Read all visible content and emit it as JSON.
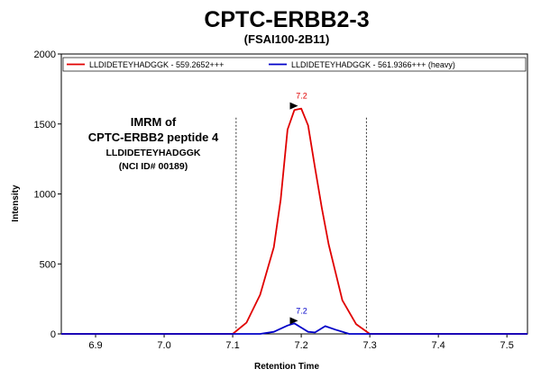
{
  "chart_data": {
    "type": "line",
    "title": "CPTC-ERBB2-3",
    "subtitle": "(FSAI100-2B11)",
    "xlabel": "Retention Time",
    "ylabel": "Intensity",
    "xlim": [
      6.85,
      7.53
    ],
    "ylim": [
      0,
      2000
    ],
    "xticks": [
      "6.9",
      "7.0",
      "7.1",
      "7.2",
      "7.3",
      "7.4",
      "7.5"
    ],
    "yticks": [
      "0",
      "500",
      "1000",
      "1500",
      "2000"
    ],
    "grid": false,
    "legend_position": "top",
    "integration_bounds": [
      7.105,
      7.295
    ],
    "series": [
      {
        "name": "LLDIDETEYHADGGK - 559.2652+++",
        "color": "#e00000",
        "x": [
          6.85,
          7.1,
          7.12,
          7.14,
          7.16,
          7.17,
          7.18,
          7.19,
          7.2,
          7.21,
          7.22,
          7.23,
          7.24,
          7.26,
          7.28,
          7.3,
          7.53
        ],
        "y": [
          0,
          0,
          80,
          280,
          620,
          960,
          1460,
          1600,
          1610,
          1490,
          1190,
          900,
          640,
          240,
          70,
          0,
          0
        ]
      },
      {
        "name": "LLDIDETEYHADGGK - 561.9366+++ (heavy)",
        "color": "#0000c8",
        "x": [
          6.85,
          7.14,
          7.16,
          7.18,
          7.19,
          7.2,
          7.21,
          7.22,
          7.235,
          7.25,
          7.27,
          7.53
        ],
        "y": [
          0,
          0,
          15,
          60,
          75,
          45,
          15,
          10,
          55,
          30,
          0,
          0
        ]
      }
    ],
    "annotations": {
      "heading_line1": "IMRM of",
      "heading_line2": "CPTC-ERBB2 peptide 4",
      "peptide": "LLDIDETEYHADGGK",
      "nci_id": "(NCI ID# 00189)",
      "peak_labels": [
        {
          "text": "7.2",
          "x": 7.19,
          "y": 1610,
          "color": "#e00000"
        },
        {
          "text": "7.2",
          "x": 7.19,
          "y": 75,
          "color": "#0000c8"
        }
      ]
    }
  }
}
